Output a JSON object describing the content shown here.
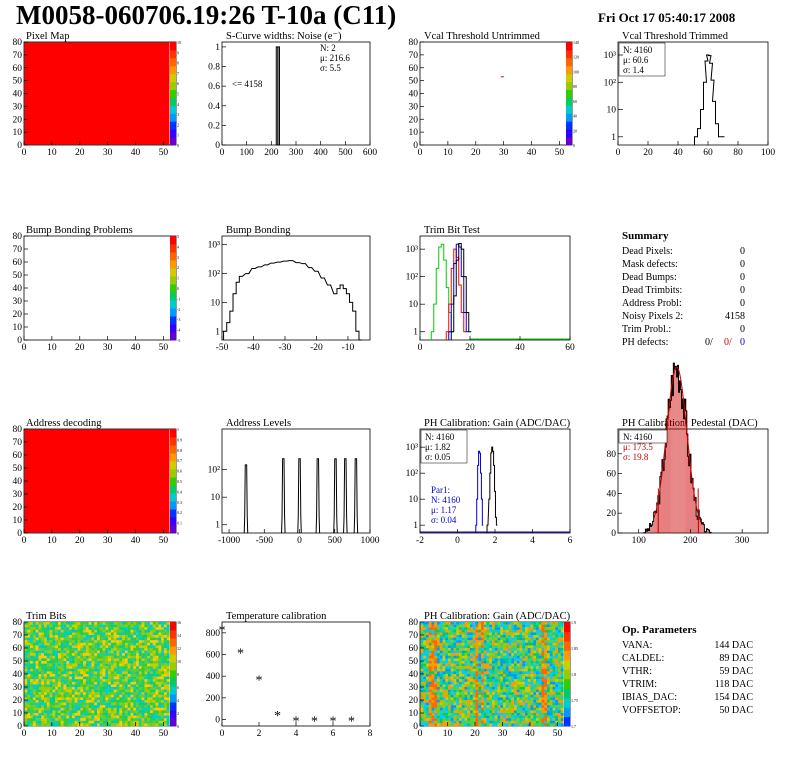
{
  "page": {
    "title": "M0058-060706.19:26 T-10a (C11)",
    "date": "Fri Oct 17 05:40:17 2008"
  },
  "chart_data": [
    {
      "id": "pixel_map",
      "type": "heatmap",
      "title": "Pixel Map",
      "xlim": [
        0,
        52
      ],
      "ylim": [
        0,
        80
      ],
      "xticks": [
        "0",
        "10",
        "20",
        "30",
        "40",
        "50"
      ],
      "yticks": [
        "0",
        "10",
        "20",
        "30",
        "40",
        "50",
        "60",
        "70",
        "80"
      ],
      "fill": "#ff0000",
      "zticks": [
        "0",
        "1",
        "2",
        "3",
        "4",
        "5",
        "6",
        "7",
        "8",
        "9",
        "10"
      ]
    },
    {
      "id": "scurve_noise",
      "type": "bar",
      "title": "S-Curve widths: Noise (e⁻)",
      "xlim": [
        0,
        600
      ],
      "ylim": [
        0,
        1.05
      ],
      "xticks": [
        "0",
        "100",
        "200",
        "300",
        "400",
        "500",
        "600"
      ],
      "yticks": [
        "0",
        "0.2",
        "0.4",
        "0.6",
        "0.8",
        "1"
      ],
      "bins": [
        [
          220,
          226,
          1
        ],
        [
          227,
          233,
          1
        ]
      ],
      "annotation": "<= 4158",
      "stats": [
        "N:    2",
        "μ:  216.6",
        "σ:   5.5"
      ]
    },
    {
      "id": "vcal_untrimmed",
      "type": "heatmap",
      "title": "Vcal Threshold Untrimmed",
      "xlim": [
        0,
        52
      ],
      "ylim": [
        0,
        80
      ],
      "xticks": [
        "0",
        "10",
        "20",
        "30",
        "40",
        "50"
      ],
      "yticks": [
        "0",
        "10",
        "20",
        "30",
        "40",
        "50",
        "60",
        "70",
        "80"
      ],
      "points": [
        [
          29,
          53
        ]
      ],
      "zticks": [
        "0",
        "20",
        "40",
        "60",
        "80",
        "100",
        "120",
        "140"
      ]
    },
    {
      "id": "vcal_trimmed",
      "type": "line",
      "title": "Vcal Threshold Trimmed",
      "yscale": "log",
      "xlim": [
        0,
        100
      ],
      "ylim": [
        0.5,
        3000
      ],
      "xticks": [
        "0",
        "20",
        "40",
        "60",
        "80",
        "100"
      ],
      "yticks": [
        "1",
        "10",
        "10²",
        "10³"
      ],
      "x": [
        52,
        54,
        56,
        58,
        59,
        60,
        61,
        62,
        63,
        64,
        66,
        68,
        70
      ],
      "y": [
        1,
        2,
        10,
        100,
        600,
        1000,
        950,
        500,
        120,
        20,
        3,
        1,
        1
      ],
      "stats": [
        "N: 4160",
        "μ:  60.6",
        "σ:   1.4"
      ]
    },
    {
      "id": "bump_problems",
      "type": "heatmap",
      "title": "Bump Bonding Problems",
      "xlim": [
        0,
        52
      ],
      "ylim": [
        0,
        80
      ],
      "xticks": [
        "0",
        "10",
        "20",
        "30",
        "40",
        "50"
      ],
      "yticks": [
        "0",
        "10",
        "20",
        "30",
        "40",
        "50",
        "60",
        "70",
        "80"
      ],
      "zticks": [
        "-5",
        "-4",
        "-3",
        "-2",
        "-1",
        "0",
        "1",
        "2",
        "3",
        "4",
        "5"
      ]
    },
    {
      "id": "bump_bonding",
      "type": "line",
      "title": "Bump Bonding",
      "yscale": "log",
      "xlim": [
        -50,
        -3
      ],
      "ylim": [
        0.5,
        2000
      ],
      "xticks": [
        "-50",
        "-40",
        "-30",
        "-20",
        "-10"
      ],
      "yticks": [
        "1",
        "10",
        "10²",
        "10³"
      ],
      "x": [
        -49,
        -48,
        -47,
        -46,
        -45,
        -44,
        -42,
        -40,
        -38,
        -36,
        -34,
        -32,
        -30,
        -28,
        -26,
        -24,
        -22,
        -20,
        -18,
        -16,
        -14,
        -13,
        -12,
        -11,
        -10,
        -9,
        -8,
        -7,
        -6
      ],
      "y": [
        1,
        2,
        5,
        20,
        50,
        80,
        100,
        150,
        170,
        200,
        230,
        250,
        270,
        280,
        240,
        220,
        160,
        120,
        70,
        40,
        20,
        30,
        40,
        30,
        20,
        10,
        5,
        1,
        0.5
      ]
    },
    {
      "id": "trim_bit_test",
      "type": "line",
      "title": "Trim Bit Test",
      "yscale": "log",
      "xlim": [
        0,
        60
      ],
      "ylim": [
        0.5,
        3000
      ],
      "xticks": [
        "0",
        "20",
        "40",
        "60"
      ],
      "yticks": [
        "1",
        "10",
        "10²",
        "10³"
      ],
      "series": [
        {
          "color": "#00cc00",
          "x": [
            5,
            6,
            7,
            8,
            9,
            10,
            11,
            12,
            13
          ],
          "y": [
            1,
            10,
            200,
            1200,
            1500,
            400,
            40,
            5,
            1
          ]
        },
        {
          "color": "#ff0000",
          "x": [
            11,
            12,
            13,
            14,
            15,
            16,
            17,
            18
          ],
          "y": [
            1,
            10,
            200,
            1000,
            500,
            50,
            5,
            1
          ]
        },
        {
          "color": "#0000cc",
          "x": [
            12,
            13,
            14,
            15,
            16,
            17,
            18,
            19
          ],
          "y": [
            1,
            10,
            300,
            1500,
            1200,
            100,
            5,
            1
          ]
        },
        {
          "color": "#000000",
          "x": [
            13,
            14,
            15,
            16,
            17,
            18,
            19,
            20
          ],
          "y": [
            1,
            20,
            400,
            1600,
            1000,
            100,
            5,
            1
          ]
        }
      ]
    },
    {
      "id": "summary",
      "type": "table",
      "title": "Summary",
      "rows": [
        {
          "label": "Dead Pixels:",
          "value": "0"
        },
        {
          "label": "Mask defects:",
          "value": "0"
        },
        {
          "label": "Dead Bumps:",
          "value": "0"
        },
        {
          "label": "Dead Trimbits:",
          "value": "0"
        },
        {
          "label": "Address Probl:",
          "value": "0"
        },
        {
          "label": "Noisy Pixels 2:",
          "value": "4158"
        },
        {
          "label": "Trim Probl.:",
          "value": "0"
        }
      ],
      "ph_label": "PH defects:",
      "ph_values": [
        {
          "value": "0/",
          "color": "#000000"
        },
        {
          "value": "0/",
          "color": "#cc0000"
        },
        {
          "value": "0",
          "color": "#0000cc"
        }
      ]
    },
    {
      "id": "address_decoding",
      "type": "heatmap",
      "title": "Address decoding",
      "xlim": [
        0,
        52
      ],
      "ylim": [
        0,
        80
      ],
      "xticks": [
        "0",
        "10",
        "20",
        "30",
        "40",
        "50"
      ],
      "yticks": [
        "0",
        "10",
        "20",
        "30",
        "40",
        "50",
        "60",
        "70",
        "80"
      ],
      "fill": "#ff0000",
      "zticks": [
        "0",
        "0.1",
        "0.2",
        "0.3",
        "0.4",
        "0.5",
        "0.6",
        "0.7",
        "0.8",
        "0.9",
        "1"
      ]
    },
    {
      "id": "address_levels",
      "type": "line",
      "title": "Address Levels",
      "yscale": "log",
      "xlim": [
        -1100,
        1000
      ],
      "ylim": [
        0.5,
        3000
      ],
      "xticks": [
        "-1000",
        "-500",
        "0",
        "500",
        "1000"
      ],
      "yticks": [
        "1",
        "10",
        "10²"
      ],
      "peaks": [
        [
          -760,
          150
        ],
        [
          -230,
          250
        ],
        [
          0,
          250
        ],
        [
          260,
          250
        ],
        [
          510,
          250
        ],
        [
          650,
          250
        ],
        [
          800,
          250
        ]
      ]
    },
    {
      "id": "ph_gain",
      "type": "line",
      "title": "PH Calibration: Gain (ADC/DAC)",
      "yscale": "log",
      "xlim": [
        -2,
        6
      ],
      "ylim": [
        0.5,
        5000
      ],
      "xticks": [
        "-2",
        "0",
        "2",
        "4",
        "6"
      ],
      "yticks": [
        "1",
        "10",
        "10²",
        "10³"
      ],
      "series": [
        {
          "color": "#000000",
          "x": [
            1.6,
            1.7,
            1.75,
            1.8,
            1.85,
            1.9,
            1.95,
            2.0,
            2.05,
            2.1
          ],
          "y": [
            1,
            10,
            100,
            600,
            1000,
            700,
            200,
            20,
            2,
            1
          ]
        },
        {
          "color": "#0000cc",
          "x": [
            1.0,
            1.05,
            1.1,
            1.15,
            1.2,
            1.25,
            1.3,
            1.35
          ],
          "y": [
            1,
            10,
            200,
            700,
            600,
            100,
            10,
            1
          ]
        }
      ],
      "stats": [
        "N: 4160",
        "μ:  1.82",
        "σ:  0.05"
      ],
      "stats2": [
        "Par1:",
        "N: 4160",
        "μ:  1.17",
        "σ:  0.04"
      ]
    },
    {
      "id": "ph_pedestal",
      "type": "line",
      "title": "PH Calibration: Pedestal (DAC)",
      "xlim": [
        60,
        350
      ],
      "ylim": [
        0,
        105
      ],
      "xticks": [
        "100",
        "200",
        "300"
      ],
      "yticks": [
        "0",
        "20",
        "40",
        "60",
        "80"
      ],
      "mu": 173.5,
      "sigma": 19.8,
      "N": 4160,
      "stats": [
        "N: 4160",
        "μ:  173.5",
        "σ:  19.8"
      ]
    },
    {
      "id": "trim_bits",
      "type": "heatmap",
      "title": "Trim Bits",
      "xlim": [
        0,
        52
      ],
      "ylim": [
        0,
        80
      ],
      "xticks": [
        "0",
        "10",
        "20",
        "30",
        "40",
        "50"
      ],
      "yticks": [
        "0",
        "10",
        "20",
        "30",
        "40",
        "50",
        "60",
        "70",
        "80"
      ],
      "zticks": [
        "0",
        "2",
        "4",
        "6",
        "8",
        "10",
        "12",
        "14",
        "16"
      ]
    },
    {
      "id": "temperature_calibration",
      "type": "scatter",
      "title": "Temperature calibration",
      "xlim": [
        0,
        8
      ],
      "ylim": [
        -60,
        900
      ],
      "xticks": [
        "0",
        "2",
        "4",
        "6",
        "8"
      ],
      "yticks": [
        "0",
        "200",
        "400",
        "600",
        "800"
      ],
      "x": [
        0,
        1,
        2,
        3,
        4,
        5,
        6,
        7
      ],
      "y": [
        830,
        620,
        370,
        40,
        -10,
        -10,
        -10,
        -10
      ]
    },
    {
      "id": "ph_gain_map",
      "type": "heatmap",
      "title": "PH Calibration: Gain (ADC/DAC)",
      "xlim": [
        0,
        52
      ],
      "ylim": [
        0,
        80
      ],
      "xticks": [
        "0",
        "10",
        "20",
        "30",
        "40",
        "50"
      ],
      "yticks": [
        "0",
        "10",
        "20",
        "30",
        "40",
        "50",
        "60",
        "70",
        "80"
      ],
      "zticks": [
        "1.7",
        "1.75",
        "1.8",
        "1.85",
        "1.9"
      ]
    },
    {
      "id": "op_parameters",
      "type": "table",
      "title": "Op. Parameters",
      "rows": [
        {
          "label": "VANA:",
          "value": "144 DAC"
        },
        {
          "label": "CALDEL:",
          "value": "89 DAC"
        },
        {
          "label": "VTHR:",
          "value": "59 DAC"
        },
        {
          "label": "VTRIM:",
          "value": "118 DAC"
        },
        {
          "label": "IBIAS_DAC:",
          "value": "154 DAC"
        },
        {
          "label": "VOFFSETOP:",
          "value": "50 DAC"
        }
      ]
    }
  ]
}
